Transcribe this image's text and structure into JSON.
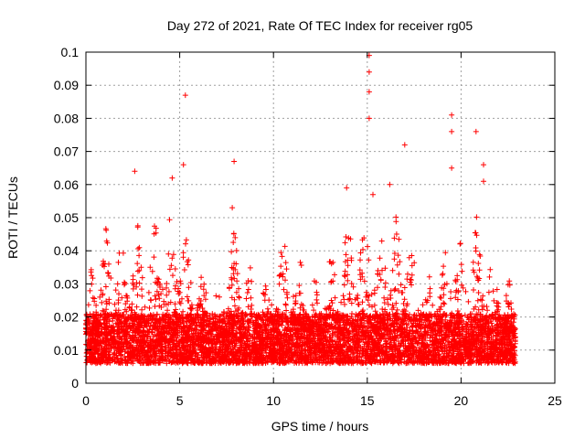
{
  "chart_data": {
    "type": "scatter",
    "title": "Day 272 of 2021, Rate Of TEC Index for receiver rg05",
    "xlabel": "GPS time / hours",
    "ylabel": "ROTI / TECUs",
    "xlim": [
      0,
      25
    ],
    "ylim": [
      0,
      0.1
    ],
    "xticks": [
      "0",
      "5",
      "10",
      "15",
      "20",
      "25"
    ],
    "yticks": [
      "0",
      "0.01",
      "0.02",
      "0.03",
      "0.04",
      "0.05",
      "0.06",
      "0.07",
      "0.08",
      "0.09",
      "0.1"
    ],
    "grid": true,
    "marker": "+",
    "color": "#ff0000",
    "data_x_range": [
      0,
      22.9
    ],
    "outliers": [
      {
        "x": 5.3,
        "y": 0.087
      },
      {
        "x": 7.9,
        "y": 0.067
      },
      {
        "x": 15.1,
        "y": 0.099
      },
      {
        "x": 15.1,
        "y": 0.094
      },
      {
        "x": 15.1,
        "y": 0.088
      },
      {
        "x": 15.1,
        "y": 0.08
      },
      {
        "x": 17.0,
        "y": 0.072
      },
      {
        "x": 19.5,
        "y": 0.081
      },
      {
        "x": 19.5,
        "y": 0.076
      },
      {
        "x": 19.5,
        "y": 0.065
      },
      {
        "x": 20.8,
        "y": 0.076
      },
      {
        "x": 21.2,
        "y": 0.066
      },
      {
        "x": 21.2,
        "y": 0.061
      },
      {
        "x": 2.6,
        "y": 0.064
      },
      {
        "x": 4.6,
        "y": 0.062
      },
      {
        "x": 5.2,
        "y": 0.066
      },
      {
        "x": 13.9,
        "y": 0.059
      },
      {
        "x": 15.3,
        "y": 0.057
      },
      {
        "x": 16.2,
        "y": 0.06
      },
      {
        "x": 7.8,
        "y": 0.053
      }
    ]
  }
}
